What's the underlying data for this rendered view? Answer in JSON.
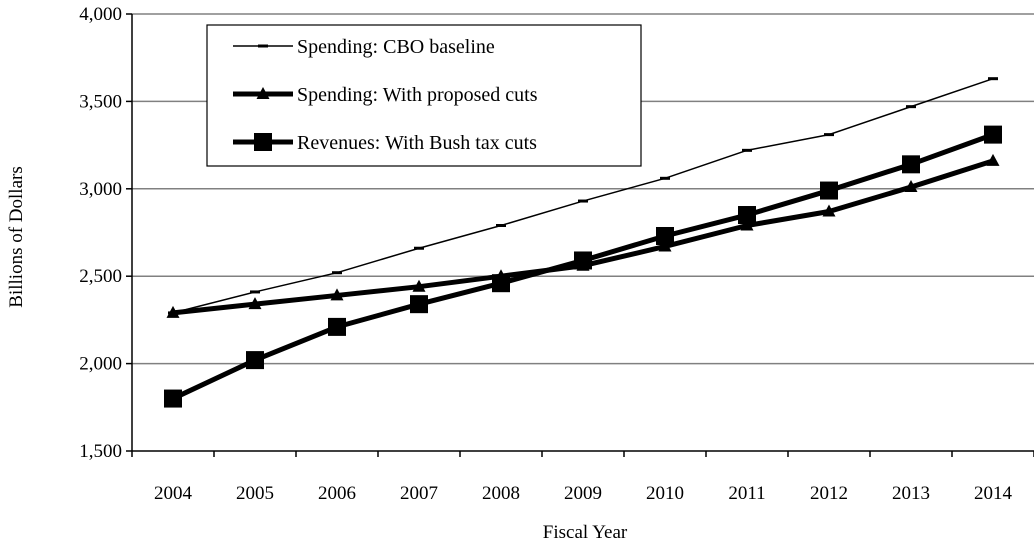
{
  "chart_data": {
    "type": "line",
    "title": "",
    "xlabel": "Fiscal Year",
    "ylabel": "Billions of Dollars",
    "categories": [
      "2004",
      "2005",
      "2006",
      "2007",
      "2008",
      "2009",
      "2010",
      "2011",
      "2012",
      "2013",
      "2014"
    ],
    "ylim": [
      1500,
      4000
    ],
    "yticks": [
      1500,
      2000,
      2500,
      3000,
      3500,
      4000
    ],
    "ytick_labels": [
      "1,500",
      "2,000",
      "2,500",
      "3,000",
      "3,500",
      "4,000"
    ],
    "grid": "horizontal",
    "legend_position": "top-left",
    "series": [
      {
        "name": "Spending: CBO baseline",
        "marker": "dash",
        "weight": "thin",
        "color": "#000000",
        "values": [
          2290,
          2410,
          2520,
          2660,
          2790,
          2930,
          3060,
          3220,
          3310,
          3470,
          3630
        ]
      },
      {
        "name": "Spending: With proposed cuts",
        "marker": "triangle",
        "weight": "thick",
        "color": "#000000",
        "values": [
          2290,
          2340,
          2390,
          2440,
          2500,
          2560,
          2670,
          2790,
          2870,
          3010,
          3160
        ]
      },
      {
        "name": "Revenues: With Bush tax cuts",
        "marker": "square",
        "weight": "thick",
        "color": "#000000",
        "values": [
          1800,
          2020,
          2210,
          2340,
          2460,
          2590,
          2730,
          2850,
          2990,
          3140,
          3310
        ]
      }
    ]
  }
}
